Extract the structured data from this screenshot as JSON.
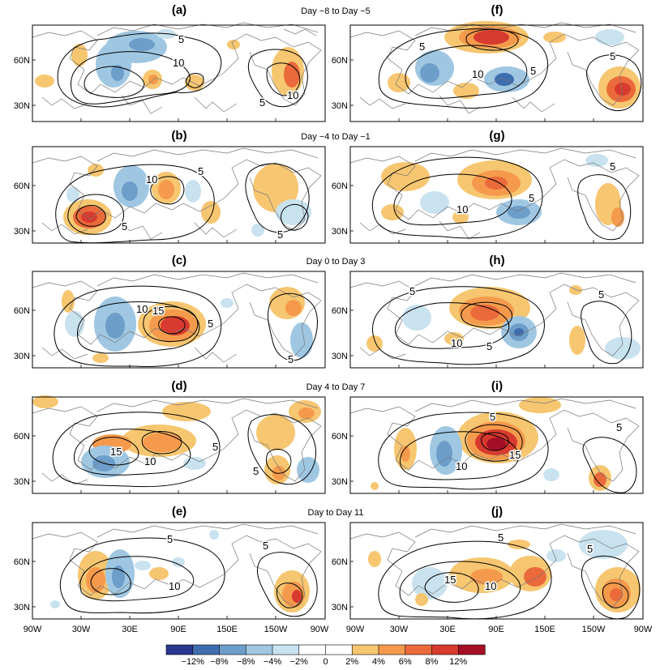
{
  "panels": [
    {
      "id": "a",
      "label": "(a)",
      "contours": [
        "5",
        "10",
        "5",
        "10",
        "5"
      ]
    },
    {
      "id": "b",
      "label": "(b)",
      "contours": [
        "10",
        "5",
        "5",
        "5"
      ]
    },
    {
      "id": "c",
      "label": "(c)",
      "contours": [
        "10",
        "15",
        "5",
        "5"
      ]
    },
    {
      "id": "d",
      "label": "(d)",
      "contours": [
        "15",
        "10",
        "5",
        "5"
      ]
    },
    {
      "id": "e",
      "label": "(e)",
      "contours": [
        "5",
        "10",
        "5"
      ]
    },
    {
      "id": "f",
      "label": "(f)",
      "contours": [
        "5",
        "10",
        "5",
        "5"
      ]
    },
    {
      "id": "g",
      "label": "(g)",
      "contours": [
        "10",
        "5",
        "5"
      ]
    },
    {
      "id": "h",
      "label": "(h)",
      "contours": [
        "5",
        "10",
        "5",
        "5"
      ]
    },
    {
      "id": "i",
      "label": "(i)",
      "contours": [
        "5",
        "10",
        "15",
        "5"
      ]
    },
    {
      "id": "j",
      "label": "(j)",
      "contours": [
        "5",
        "15",
        "10",
        "5"
      ]
    }
  ],
  "row_titles": [
    "Day −8 to Day −5",
    "Day −4 to Day −1",
    "Day 0 to Day 3",
    "Day 4 to Day 7",
    "Day  to Day 11"
  ],
  "lat_labels": [
    "60N",
    "30N"
  ],
  "lon_labels": [
    "90W",
    "30W",
    "30E",
    "90E",
    "150E",
    "150W",
    "90W"
  ],
  "colorbar": {
    "colors": [
      "#2a3690",
      "#3e6eb0",
      "#6d9ec9",
      "#9fc7e2",
      "#c9e2ef",
      "#ffffff",
      "#ffffff",
      "#f6c670",
      "#f59a4c",
      "#eb6a3b",
      "#d73a2e",
      "#a50f26"
    ],
    "labels": [
      "−12%",
      "−8%",
      "−8%",
      "−4%",
      "−2%",
      "0",
      "2%",
      "4%",
      "6%",
      "8%",
      "12%"
    ]
  },
  "colors": {
    "red_shade": "#e8603c",
    "blue_shade": "#8fbbdc",
    "contour": "#000000",
    "coast": "#777777"
  }
}
